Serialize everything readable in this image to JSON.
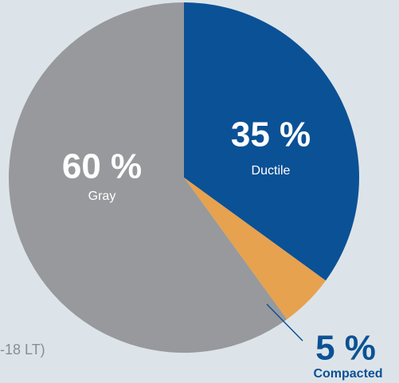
{
  "chart_data": {
    "type": "pie",
    "categories": [
      "Ductile",
      "Compacted",
      "Gray"
    ],
    "values": [
      35,
      5,
      60
    ],
    "value_labels": [
      "35 %",
      "5 %",
      "60 %"
    ],
    "colors": [
      "#0b5196",
      "#e6a24f",
      "#98999c"
    ],
    "note": "-18 LT)"
  }
}
